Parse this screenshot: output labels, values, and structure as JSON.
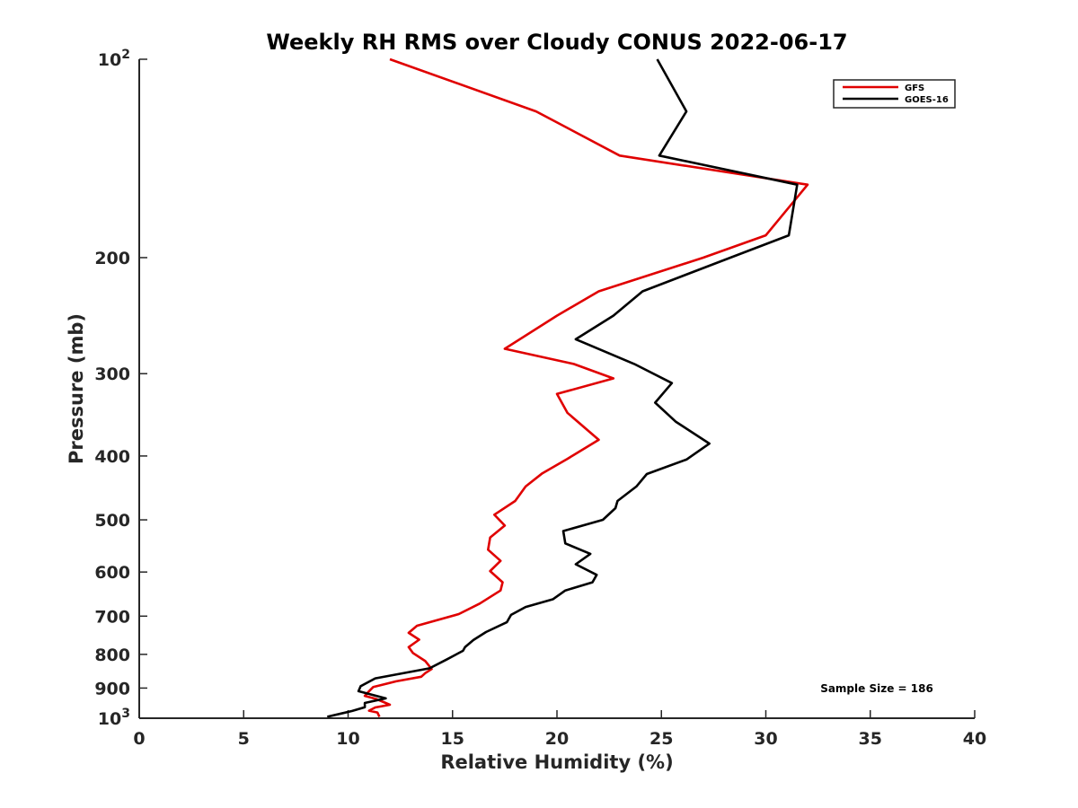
{
  "chart_data": {
    "type": "line",
    "title": "Weekly RH RMS over Cloudy CONUS 2022-06-17",
    "xlabel": "Relative Humidity (%)",
    "ylabel": "Pressure (mb)",
    "x_scale": "linear",
    "y_scale": "log",
    "y_reversed": true,
    "xlim": [
      0,
      40
    ],
    "ylim": [
      100,
      1000
    ],
    "x_ticks": [
      0,
      5,
      10,
      15,
      20,
      25,
      30,
      35,
      40
    ],
    "y_ticks": [
      {
        "value": 100,
        "base": "10",
        "exp": "2"
      },
      {
        "value": 200,
        "label": "200"
      },
      {
        "value": 300,
        "label": "300"
      },
      {
        "value": 400,
        "label": "400"
      },
      {
        "value": 500,
        "label": "500"
      },
      {
        "value": 600,
        "label": "600"
      },
      {
        "value": 700,
        "label": "700"
      },
      {
        "value": 800,
        "label": "800"
      },
      {
        "value": 900,
        "label": "900"
      },
      {
        "value": 1000,
        "base": "10",
        "exp": "3"
      }
    ],
    "grid": false,
    "legend_position": "top-right",
    "annotation": "Sample Size = 186",
    "series": [
      {
        "name": "GFS",
        "color": "#e00000",
        "points": [
          [
            12.0,
            100
          ],
          [
            19.0,
            120
          ],
          [
            23.0,
            140
          ],
          [
            32.0,
            155
          ],
          [
            30.0,
            185
          ],
          [
            27.0,
            200
          ],
          [
            22.0,
            225
          ],
          [
            20.0,
            245
          ],
          [
            17.5,
            275
          ],
          [
            20.8,
            290
          ],
          [
            22.7,
            305
          ],
          [
            20.0,
            322
          ],
          [
            20.5,
            344
          ],
          [
            22.0,
            378
          ],
          [
            20.5,
            404
          ],
          [
            19.3,
            425
          ],
          [
            18.5,
            445
          ],
          [
            18.0,
            468
          ],
          [
            17.0,
            491
          ],
          [
            17.5,
            510
          ],
          [
            16.8,
            532
          ],
          [
            16.7,
            555
          ],
          [
            17.3,
            577
          ],
          [
            16.8,
            598
          ],
          [
            17.4,
            622
          ],
          [
            17.3,
            640
          ],
          [
            16.3,
            670
          ],
          [
            15.3,
            695
          ],
          [
            13.3,
            724
          ],
          [
            12.9,
            742
          ],
          [
            13.4,
            760
          ],
          [
            12.9,
            780
          ],
          [
            13.1,
            796
          ],
          [
            13.7,
            819
          ],
          [
            14.0,
            842
          ],
          [
            13.7,
            854
          ],
          [
            13.5,
            865
          ],
          [
            12.3,
            879
          ],
          [
            11.2,
            897
          ],
          [
            11.0,
            910
          ],
          [
            10.8,
            925
          ],
          [
            11.3,
            934
          ],
          [
            11.7,
            945
          ],
          [
            12.0,
            954
          ],
          [
            11.3,
            963
          ],
          [
            11.0,
            974
          ],
          [
            11.4,
            980
          ],
          [
            11.5,
            995
          ]
        ]
      },
      {
        "name": "GOES-16",
        "color": "#000000",
        "points": [
          [
            24.8,
            100
          ],
          [
            26.2,
            120
          ],
          [
            24.9,
            140
          ],
          [
            31.5,
            155
          ],
          [
            31.1,
            185
          ],
          [
            28.3,
            200
          ],
          [
            24.1,
            225
          ],
          [
            22.7,
            245
          ],
          [
            20.9,
            266
          ],
          [
            23.7,
            290
          ],
          [
            25.5,
            310
          ],
          [
            24.7,
            332
          ],
          [
            25.7,
            355
          ],
          [
            27.3,
            383
          ],
          [
            26.2,
            405
          ],
          [
            24.3,
            426
          ],
          [
            23.8,
            445
          ],
          [
            22.9,
            468
          ],
          [
            22.8,
            480
          ],
          [
            22.2,
            500
          ],
          [
            20.3,
            520
          ],
          [
            20.4,
            543
          ],
          [
            21.6,
            563
          ],
          [
            20.9,
            584
          ],
          [
            21.9,
            606
          ],
          [
            21.7,
            622
          ],
          [
            20.4,
            640
          ],
          [
            19.8,
            660
          ],
          [
            18.5,
            678
          ],
          [
            17.8,
            697
          ],
          [
            17.6,
            715
          ],
          [
            16.6,
            740
          ],
          [
            16.0,
            761
          ],
          [
            15.6,
            780
          ],
          [
            15.5,
            790
          ],
          [
            14.7,
            815
          ],
          [
            13.9,
            840
          ],
          [
            11.3,
            870
          ],
          [
            10.6,
            894
          ],
          [
            10.5,
            910
          ],
          [
            11.8,
            933
          ],
          [
            10.8,
            948
          ],
          [
            10.8,
            962
          ],
          [
            10.2,
            975
          ],
          [
            9.0,
            995
          ]
        ]
      }
    ]
  }
}
